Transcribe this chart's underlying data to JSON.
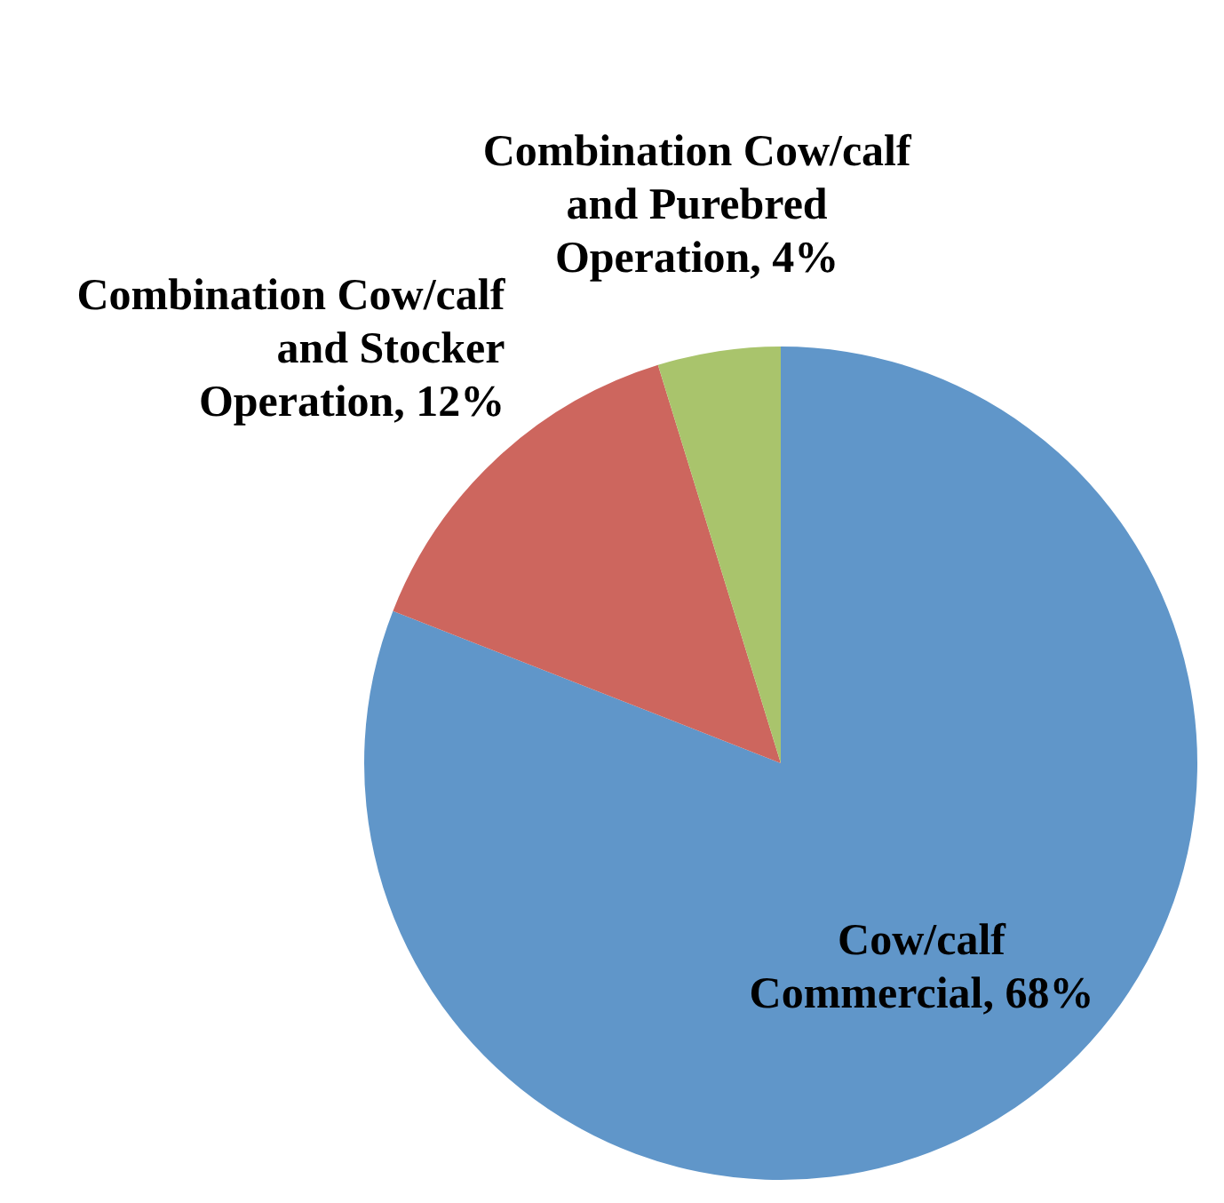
{
  "chart_data": {
    "type": "pie",
    "categories": [
      "Cow/calf Commercial",
      "Combination Cow/calf and Stocker Operation",
      "Combination Cow/calf and Purebred Operation"
    ],
    "values": [
      68,
      12,
      4
    ],
    "value_labels": [
      "68%",
      "12%",
      "4%"
    ],
    "colors": [
      "#6096c9",
      "#cd665e",
      "#a9c46c"
    ],
    "legend": false
  }
}
